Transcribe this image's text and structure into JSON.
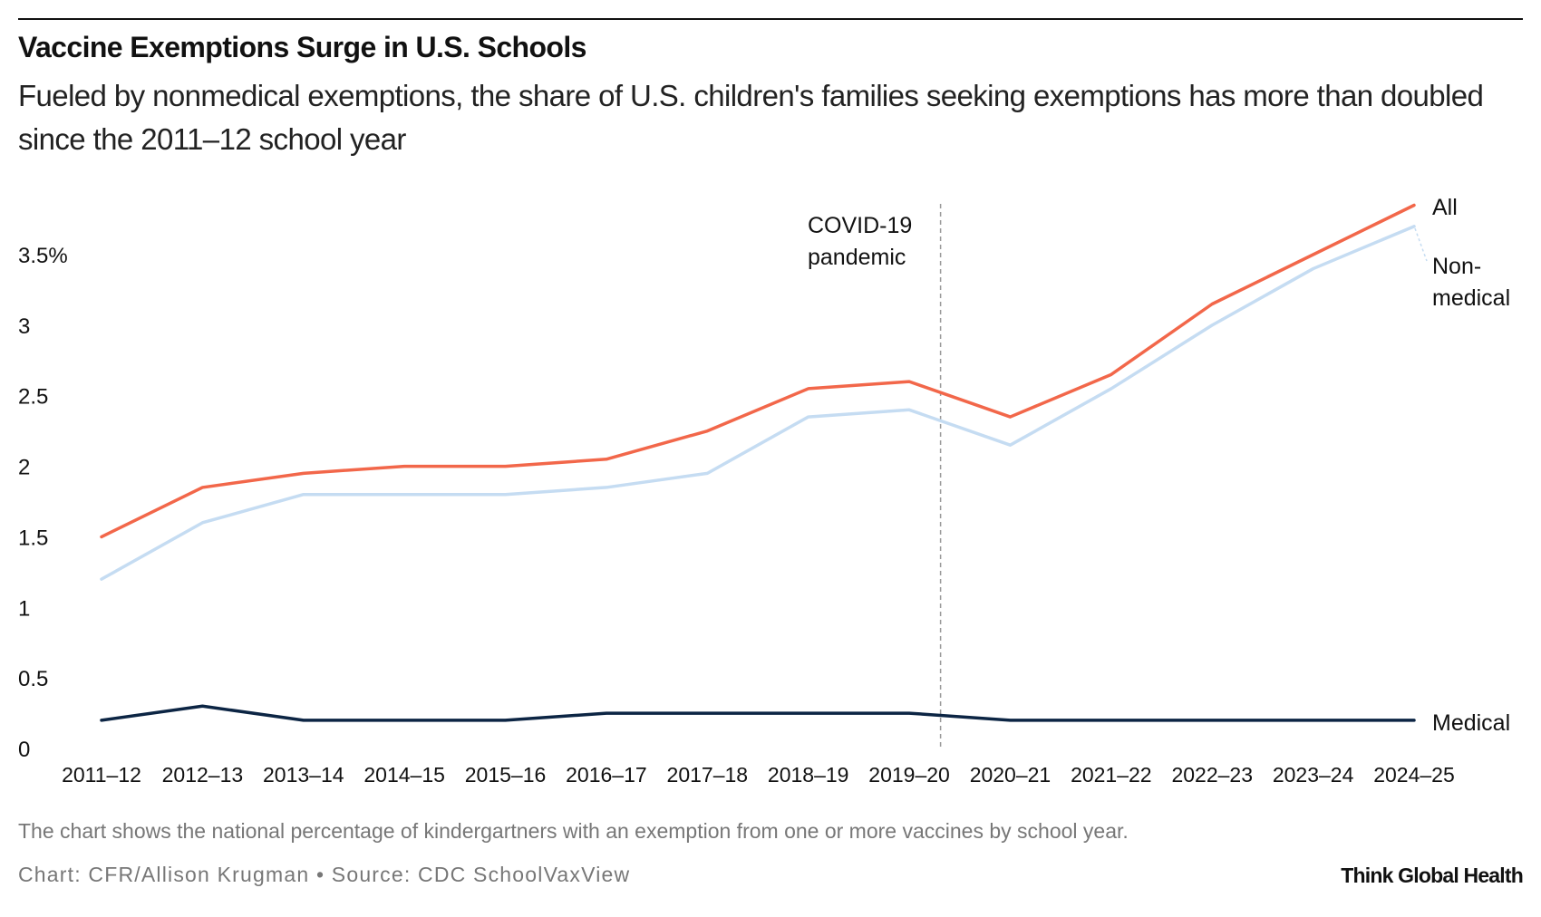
{
  "title": "Vaccine Exemptions Surge in U.S. Schools",
  "subtitle": "Fueled by nonmedical exemptions, the share of U.S. children's families seeking exemptions has more than doubled since the 2011–12 school year",
  "note": "The chart shows the national percentage of kindergartners with an exemption from one or more vaccines by school year.",
  "credit": "Chart: CFR/Allison Krugman • Source: CDC SchoolVaxView",
  "logo": "Think Global Health",
  "chart_data": {
    "type": "line",
    "title": "Vaccine Exemptions Surge in U.S. Schools",
    "xlabel": "",
    "ylabel": "",
    "categories": [
      "2011–12",
      "2012–13",
      "2013–14",
      "2014–15",
      "2015–16",
      "2016–17",
      "2017–18",
      "2018–19",
      "2019–20",
      "2020–21",
      "2021–22",
      "2022–23",
      "2023–24",
      "2024–25"
    ],
    "ylim": [
      0,
      3.9
    ],
    "yticks": [
      0,
      0.5,
      1,
      1.5,
      2,
      2.5,
      3,
      3.5
    ],
    "ytick_labels": [
      "0",
      "0.5",
      "1",
      "1.5",
      "2",
      "2.5",
      "3",
      "3.5%"
    ],
    "grid": false,
    "legend": "direct labels at line ends (right)",
    "series": [
      {
        "name": "All",
        "color": "#f2674a",
        "values": [
          1.5,
          1.85,
          1.95,
          2.0,
          2.0,
          2.05,
          2.25,
          2.55,
          2.6,
          2.35,
          2.65,
          3.15,
          3.5,
          3.85
        ]
      },
      {
        "name": "Non-medical",
        "color": "#c5dcf2",
        "values": [
          1.2,
          1.6,
          1.8,
          1.8,
          1.8,
          1.85,
          1.95,
          2.35,
          2.4,
          2.15,
          2.55,
          3.0,
          3.4,
          3.7
        ]
      },
      {
        "name": "Medical",
        "color": "#0c2544",
        "values": [
          0.2,
          0.3,
          0.2,
          0.2,
          0.2,
          0.25,
          0.25,
          0.25,
          0.25,
          0.2,
          0.2,
          0.2,
          0.2,
          0.2
        ]
      }
    ],
    "annotations": [
      {
        "text_lines": [
          "COVID-19",
          "pandemic"
        ],
        "between": [
          "2019–20",
          "2020–21"
        ],
        "style": "dashed vertical line"
      }
    ]
  }
}
